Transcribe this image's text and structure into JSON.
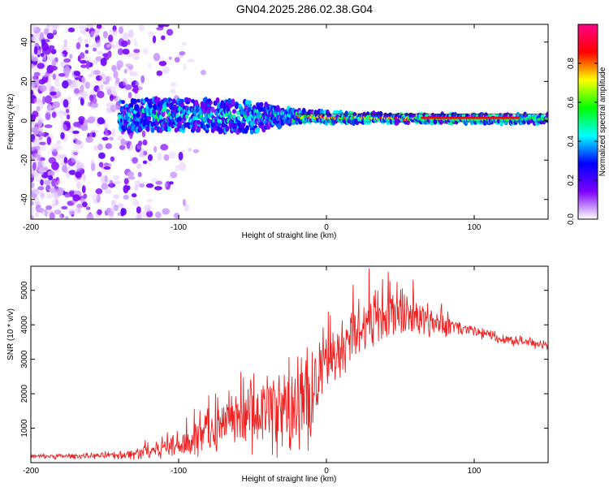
{
  "title": "GN04.2025.286.02.38.G04",
  "chart_data": [
    {
      "type": "heatmap",
      "name": "spectrogram",
      "xlabel": "Height of straight line (km)",
      "ylabel": "Frequency (Hz)",
      "xlim": [
        -200,
        150
      ],
      "ylim": [
        -50,
        49
      ],
      "xticks": [
        -200,
        -100,
        0,
        100
      ],
      "xtick_labels": [
        "-200",
        "-100",
        "0",
        "100"
      ],
      "yticks": [
        -40,
        -20,
        0,
        20,
        40
      ],
      "ytick_labels": [
        "-40",
        "-20",
        "0",
        "20",
        "40"
      ],
      "colorbar": {
        "label": "Normalized spectral amplitude",
        "range": [
          0,
          1
        ],
        "ticks": [
          0.0,
          0.2,
          0.4,
          0.6,
          0.8
        ],
        "tick_labels": [
          "0.0",
          "0.2",
          "0.4",
          "0.6",
          "0.8"
        ],
        "colors": [
          "#ffffff",
          "#7b00ff",
          "#0000ff",
          "#00ffff",
          "#00ff00",
          "#ffff00",
          "#ff0000",
          "#ff0088"
        ]
      },
      "features": {
        "noise_region_x": [
          -200,
          -120
        ],
        "signal_band_start_x": -140,
        "signal_band_freq_center_hz": [
          3,
          3,
          2,
          2,
          1,
          1
        ],
        "signal_band_x": [
          -140,
          -100,
          -50,
          -20,
          50,
          150
        ],
        "signal_band_spread_hz": [
          8,
          8,
          8,
          3,
          2,
          2
        ]
      }
    },
    {
      "type": "line",
      "name": "snr",
      "xlabel": "Height of straight line (km)",
      "ylabel": "SNR (10 * v/v)",
      "xlim": [
        -200,
        150
      ],
      "ylim": [
        0,
        5700
      ],
      "xticks": [
        -200,
        -100,
        0,
        100
      ],
      "xtick_labels": [
        "-200",
        "-100",
        "0",
        "100"
      ],
      "yticks": [
        1000,
        2000,
        3000,
        4000,
        5000
      ],
      "ytick_labels": [
        "1000",
        "2000",
        "3000",
        "4000",
        "5000"
      ],
      "color": "#ee2222",
      "envelope_x": [
        -200,
        -150,
        -130,
        -110,
        -90,
        -70,
        -50,
        -40,
        -30,
        -20,
        -15,
        -10,
        -5,
        0,
        10,
        20,
        30,
        40,
        50,
        60,
        70,
        80,
        90,
        100,
        120,
        150
      ],
      "envelope_mean": [
        180,
        200,
        250,
        450,
        700,
        1000,
        1300,
        1500,
        1500,
        1500,
        1500,
        2000,
        2600,
        2900,
        3300,
        3800,
        4200,
        4300,
        4400,
        4200,
        4100,
        4000,
        3900,
        3800,
        3600,
        3400
      ],
      "envelope_spread": [
        80,
        100,
        200,
        400,
        700,
        900,
        1200,
        1400,
        1500,
        1800,
        2000,
        1600,
        1400,
        1100,
        1000,
        1100,
        1200,
        1100,
        1000,
        800,
        600,
        400,
        300,
        250,
        200,
        150
      ]
    }
  ]
}
